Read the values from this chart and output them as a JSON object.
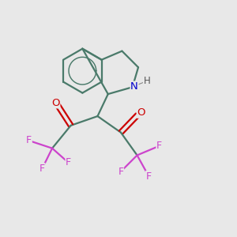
{
  "bg_color": "#e8e8e8",
  "bond_color": "#4a7a6a",
  "N_color": "#0000cc",
  "O_color": "#cc0000",
  "F_color": "#cc44cc",
  "H_color": "#555555",
  "line_width": 1.6,
  "figsize": [
    3.0,
    3.0
  ],
  "dpi": 100,
  "xlim": [
    0,
    10
  ],
  "ylim": [
    0,
    10
  ]
}
